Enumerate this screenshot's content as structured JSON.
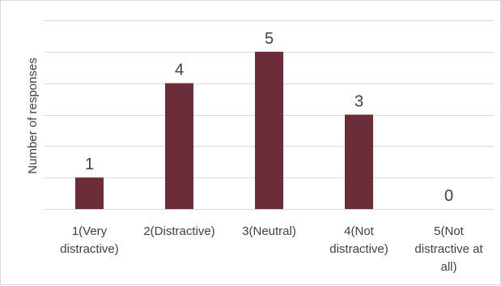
{
  "chart_data": {
    "type": "bar",
    "title": "",
    "xlabel": "",
    "ylabel": "Number of responses",
    "ylim": [
      0,
      5
    ],
    "grid": true,
    "legend": "none",
    "bar_color": "#6b2d37",
    "categories": [
      [
        "1(Very",
        "distractive)"
      ],
      [
        "2(Distractive)"
      ],
      [
        "3(Neutral)"
      ],
      [
        "4(Not",
        "distractive)"
      ],
      [
        "5(Not",
        "distractive at",
        "all)"
      ]
    ],
    "values": [
      1,
      4,
      5,
      3,
      0
    ],
    "data_labels": [
      "1",
      "4",
      "5",
      "3",
      "0"
    ]
  }
}
